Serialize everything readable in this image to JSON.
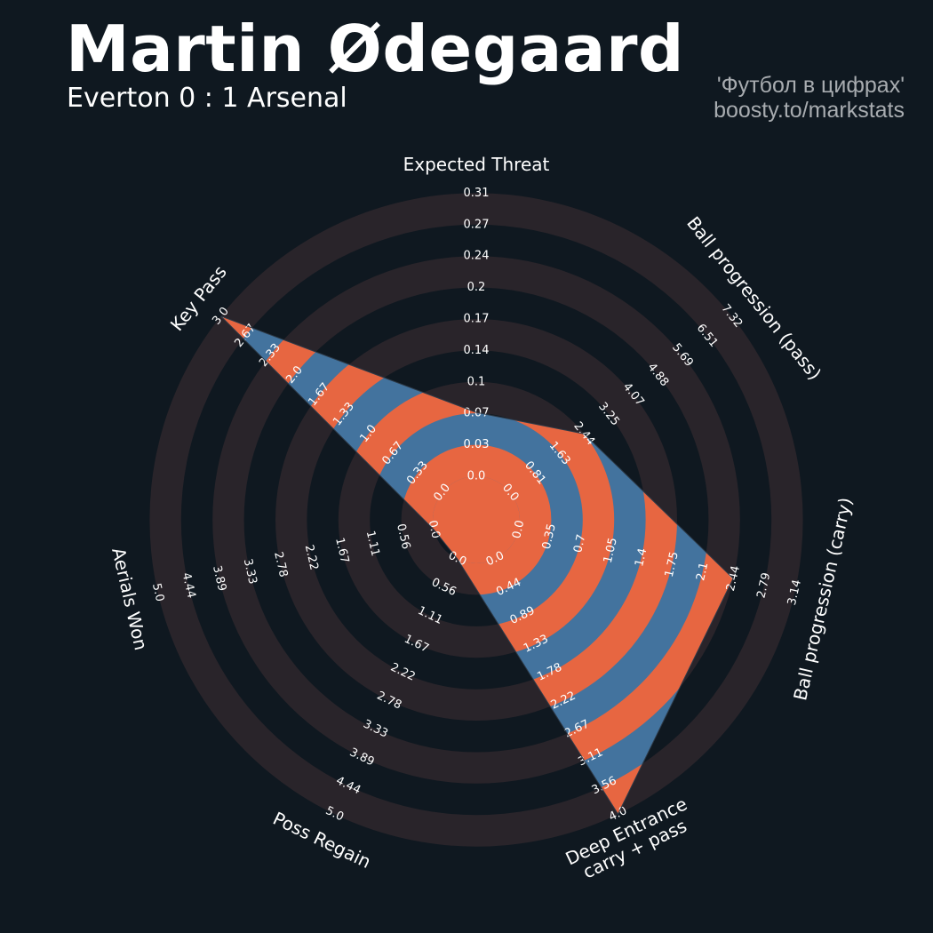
{
  "header": {
    "player_name": "Martin Ødegaard",
    "match": "Everton 0 : 1 Arsenal",
    "credit_line1": "'Футбол в цифрах'",
    "credit_line2": "boosty.to/markstats"
  },
  "colors": {
    "background": "#0f1820",
    "ring": "#29242a",
    "player_blue": "#43739e",
    "player_orange": "#e76641",
    "text": "#ffffff",
    "credit": "#a8acb0"
  },
  "chart_data": {
    "type": "radar",
    "title": "Martin Ødegaard",
    "subtitle": "Everton 0 : 1 Arsenal",
    "params": [
      {
        "label": "Expected Threat",
        "ticks": [
          "0.0",
          "0.03",
          "0.07",
          "0.1",
          "0.14",
          "0.17",
          "0.2",
          "0.24",
          "0.27",
          "0.31"
        ],
        "value": 0.07
      },
      {
        "label": "Ball progression (pass)",
        "ticks": [
          "0.0",
          "0.81",
          "1.63",
          "2.44",
          "3.25",
          "4.07",
          "4.88",
          "5.69",
          "6.51",
          "7.32"
        ],
        "value": 2.44
      },
      {
        "label": "Ball progression (carry)",
        "ticks": [
          "0.0",
          "0.35",
          "0.7",
          "1.05",
          "1.4",
          "1.75",
          "2.1",
          "2.44",
          "2.79",
          "3.14"
        ],
        "value": 2.44
      },
      {
        "label": "Deep Entrance\ncarry + pass",
        "ticks": [
          "0.0",
          "0.44",
          "0.89",
          "1.33",
          "1.78",
          "2.22",
          "2.67",
          "3.11",
          "3.56",
          "4.0"
        ],
        "value": 4.0
      },
      {
        "label": "Poss Regain",
        "ticks": [
          "0.0",
          "0.56",
          "1.11",
          "1.67",
          "2.22",
          "2.78",
          "3.33",
          "3.89",
          "4.44",
          "5.0"
        ],
        "value": 0.0
      },
      {
        "label": "Aerials Won",
        "ticks": [
          "0.0",
          "0.56",
          "1.11",
          "1.67",
          "2.22",
          "2.78",
          "3.33",
          "3.89",
          "4.44",
          "5.0"
        ],
        "value": 0.0
      },
      {
        "label": "Key Pass",
        "ticks": [
          "0.0",
          "0.33",
          "0.67",
          "1.0",
          "1.33",
          "1.67",
          "2.0",
          "2.33",
          "2.67",
          "3.0"
        ],
        "value": 3.0
      }
    ]
  }
}
